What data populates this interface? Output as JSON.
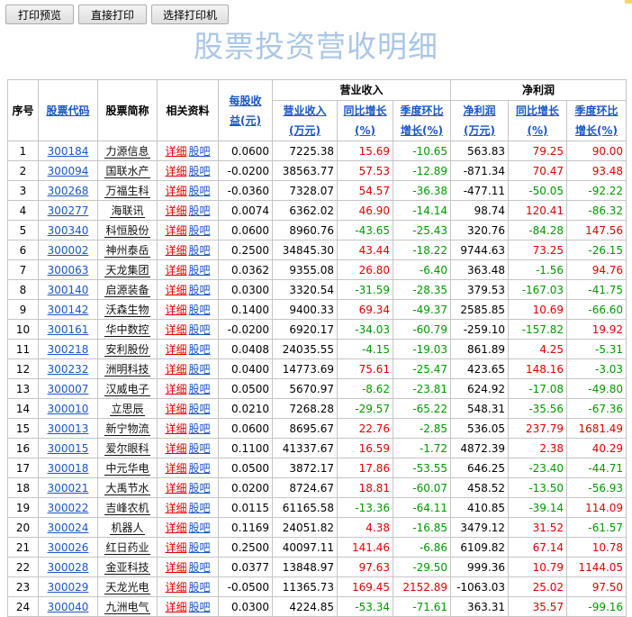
{
  "toolbar": {
    "print_preview_label": "打印预览",
    "print_direct_label": "直接打印",
    "choose_printer_label": "选择打印机"
  },
  "page_title": "股票投资营收明细",
  "table": {
    "headers": {
      "seq": "序号",
      "code": "股票代码",
      "name": "股票简称",
      "related": "相关资料",
      "eps": [
        "每股收",
        "益(元)"
      ],
      "revenue_group": "营业收入",
      "revenue": [
        "营业收入",
        "(万元)"
      ],
      "rev_yoy": [
        "同比增长",
        "(%)"
      ],
      "rev_qoq": [
        "季度环比",
        "增长(%)"
      ],
      "profit_group": "净利润",
      "profit": [
        "净利润",
        "(万元)"
      ],
      "profit_yoy": [
        "同比增长",
        "(%)"
      ],
      "profit_qoq": [
        "季度环比",
        "增长(%)"
      ]
    },
    "detail_label": "详细",
    "forum_label": "股吧",
    "colors": {
      "positive": "#e00000",
      "negative": "#009900",
      "link": "#1a56c8",
      "title": "#aac6e6"
    },
    "rows": [
      {
        "seq": "1",
        "code": "300184",
        "name": "力源信息",
        "eps": "0.0600",
        "revenue": "7225.38",
        "rev_yoy": "15.69",
        "rev_qoq": "-10.65",
        "profit": "563.83",
        "profit_yoy": "79.25",
        "profit_qoq": "90.00"
      },
      {
        "seq": "2",
        "code": "300094",
        "name": "国联水产",
        "eps": "-0.0200",
        "revenue": "38563.77",
        "rev_yoy": "57.53",
        "rev_qoq": "-12.89",
        "profit": "-871.34",
        "profit_yoy": "70.47",
        "profit_qoq": "93.48"
      },
      {
        "seq": "3",
        "code": "300268",
        "name": "万福生科",
        "eps": "-0.0360",
        "revenue": "7328.07",
        "rev_yoy": "54.57",
        "rev_qoq": "-36.38",
        "profit": "-477.11",
        "profit_yoy": "-50.05",
        "profit_qoq": "-92.22"
      },
      {
        "seq": "4",
        "code": "300277",
        "name": "海联讯",
        "eps": "0.0074",
        "revenue": "6362.02",
        "rev_yoy": "46.90",
        "rev_qoq": "-14.14",
        "profit": "98.74",
        "profit_yoy": "120.41",
        "profit_qoq": "-86.32"
      },
      {
        "seq": "5",
        "code": "300340",
        "name": "科恒股份",
        "eps": "0.0600",
        "revenue": "8960.76",
        "rev_yoy": "-43.65",
        "rev_qoq": "-25.43",
        "profit": "320.76",
        "profit_yoy": "-84.28",
        "profit_qoq": "147.56"
      },
      {
        "seq": "6",
        "code": "300002",
        "name": "神州泰岳",
        "eps": "0.2500",
        "revenue": "34845.30",
        "rev_yoy": "43.44",
        "rev_qoq": "-18.22",
        "profit": "9744.63",
        "profit_yoy": "73.25",
        "profit_qoq": "-26.15"
      },
      {
        "seq": "7",
        "code": "300063",
        "name": "天龙集团",
        "eps": "0.0362",
        "revenue": "9355.08",
        "rev_yoy": "26.80",
        "rev_qoq": "-6.40",
        "profit": "363.48",
        "profit_yoy": "-1.56",
        "profit_qoq": "94.76"
      },
      {
        "seq": "8",
        "code": "300140",
        "name": "启源装备",
        "eps": "0.0300",
        "revenue": "3320.54",
        "rev_yoy": "-31.59",
        "rev_qoq": "-28.35",
        "profit": "379.53",
        "profit_yoy": "-167.03",
        "profit_qoq": "-41.75"
      },
      {
        "seq": "9",
        "code": "300142",
        "name": "沃森生物",
        "eps": "0.1400",
        "revenue": "9400.33",
        "rev_yoy": "69.34",
        "rev_qoq": "-49.37",
        "profit": "2585.85",
        "profit_yoy": "10.69",
        "profit_qoq": "-66.60"
      },
      {
        "seq": "10",
        "code": "300161",
        "name": "华中数控",
        "eps": "-0.0200",
        "revenue": "6920.17",
        "rev_yoy": "-34.03",
        "rev_qoq": "-60.79",
        "profit": "-259.10",
        "profit_yoy": "-157.82",
        "profit_qoq": "19.92"
      },
      {
        "seq": "11",
        "code": "300218",
        "name": "安利股份",
        "eps": "0.0408",
        "revenue": "24035.55",
        "rev_yoy": "-4.15",
        "rev_qoq": "-19.03",
        "profit": "861.89",
        "profit_yoy": "4.25",
        "profit_qoq": "-5.31"
      },
      {
        "seq": "12",
        "code": "300232",
        "name": "洲明科技",
        "eps": "0.0400",
        "revenue": "14773.69",
        "rev_yoy": "75.61",
        "rev_qoq": "-25.47",
        "profit": "423.65",
        "profit_yoy": "148.16",
        "profit_qoq": "-3.03"
      },
      {
        "seq": "13",
        "code": "300007",
        "name": "汉威电子",
        "eps": "0.0500",
        "revenue": "5670.97",
        "rev_yoy": "-8.62",
        "rev_qoq": "-23.81",
        "profit": "624.92",
        "profit_yoy": "-17.08",
        "profit_qoq": "-49.80"
      },
      {
        "seq": "14",
        "code": "300010",
        "name": "立思辰",
        "eps": "0.0210",
        "revenue": "7268.28",
        "rev_yoy": "-29.57",
        "rev_qoq": "-65.22",
        "profit": "548.31",
        "profit_yoy": "-35.56",
        "profit_qoq": "-67.36"
      },
      {
        "seq": "15",
        "code": "300013",
        "name": "新宁物流",
        "eps": "0.0600",
        "revenue": "8695.67",
        "rev_yoy": "22.76",
        "rev_qoq": "-2.85",
        "profit": "536.05",
        "profit_yoy": "237.79",
        "profit_qoq": "1681.49"
      },
      {
        "seq": "16",
        "code": "300015",
        "name": "爱尔眼科",
        "eps": "0.1100",
        "revenue": "41337.67",
        "rev_yoy": "16.59",
        "rev_qoq": "-1.72",
        "profit": "4872.39",
        "profit_yoy": "2.38",
        "profit_qoq": "40.29"
      },
      {
        "seq": "17",
        "code": "300018",
        "name": "中元华电",
        "eps": "0.0500",
        "revenue": "3872.17",
        "rev_yoy": "17.86",
        "rev_qoq": "-53.55",
        "profit": "646.25",
        "profit_yoy": "-23.40",
        "profit_qoq": "-44.71"
      },
      {
        "seq": "18",
        "code": "300021",
        "name": "大禹节水",
        "eps": "0.0200",
        "revenue": "8724.67",
        "rev_yoy": "18.81",
        "rev_qoq": "-60.07",
        "profit": "458.52",
        "profit_yoy": "-13.50",
        "profit_qoq": "-56.93"
      },
      {
        "seq": "19",
        "code": "300022",
        "name": "吉峰农机",
        "eps": "0.0115",
        "revenue": "61165.58",
        "rev_yoy": "-13.36",
        "rev_qoq": "-64.11",
        "profit": "410.85",
        "profit_yoy": "-39.14",
        "profit_qoq": "114.09"
      },
      {
        "seq": "20",
        "code": "300024",
        "name": "机器人",
        "eps": "0.1169",
        "revenue": "24051.82",
        "rev_yoy": "4.38",
        "rev_qoq": "-16.85",
        "profit": "3479.12",
        "profit_yoy": "31.52",
        "profit_qoq": "-61.57"
      },
      {
        "seq": "21",
        "code": "300026",
        "name": "红日药业",
        "eps": "0.2500",
        "revenue": "40097.11",
        "rev_yoy": "141.46",
        "rev_qoq": "-6.86",
        "profit": "6109.82",
        "profit_yoy": "67.14",
        "profit_qoq": "10.78"
      },
      {
        "seq": "22",
        "code": "300028",
        "name": "金亚科技",
        "eps": "0.0377",
        "revenue": "13848.97",
        "rev_yoy": "97.63",
        "rev_qoq": "-29.50",
        "profit": "999.36",
        "profit_yoy": "10.79",
        "profit_qoq": "1144.05"
      },
      {
        "seq": "23",
        "code": "300029",
        "name": "天龙光电",
        "eps": "-0.0500",
        "revenue": "11365.73",
        "rev_yoy": "169.45",
        "rev_qoq": "2152.89",
        "profit": "-1063.03",
        "profit_yoy": "25.02",
        "profit_qoq": "97.50"
      },
      {
        "seq": "24",
        "code": "300040",
        "name": "九洲电气",
        "eps": "0.0300",
        "revenue": "4224.85",
        "rev_yoy": "-53.34",
        "rev_qoq": "-71.61",
        "profit": "363.31",
        "profit_yoy": "35.57",
        "profit_qoq": "-99.16"
      }
    ]
  }
}
